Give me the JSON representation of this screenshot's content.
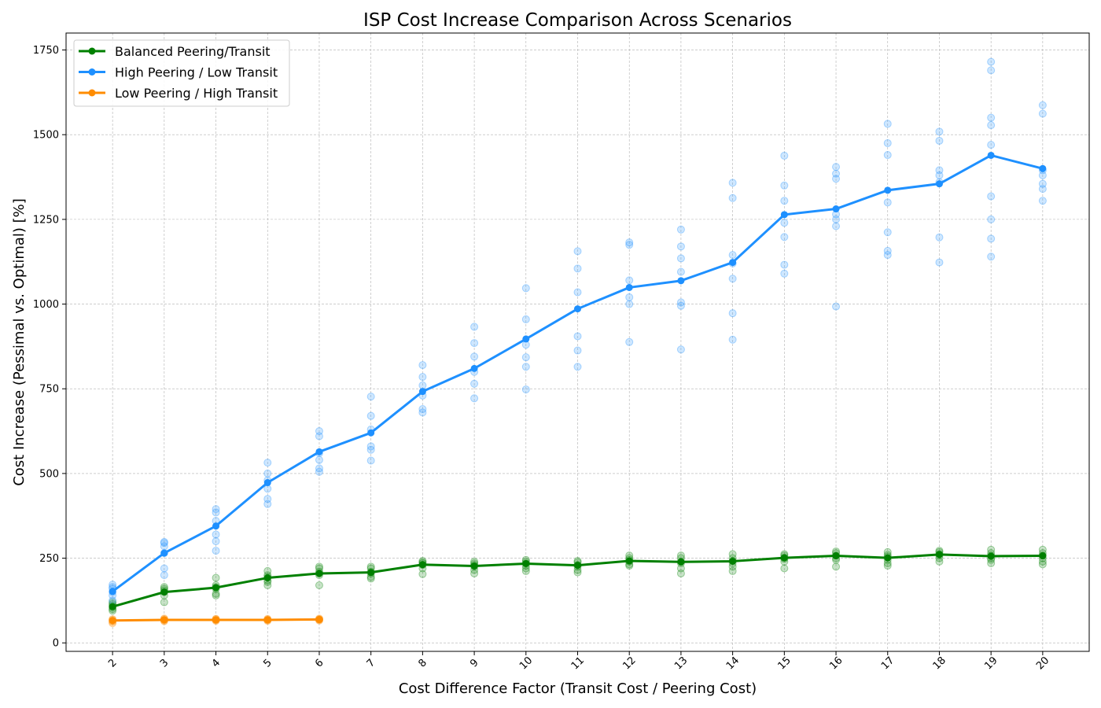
{
  "chart_data": {
    "type": "line",
    "title": "ISP Cost Increase Comparison Across Scenarios",
    "xlabel": "Cost Difference Factor (Transit Cost / Peering Cost)",
    "ylabel": "Cost Increase (Pessimal vs. Optimal) [%]",
    "x_ticks": [
      2,
      3,
      4,
      5,
      6,
      7,
      8,
      9,
      10,
      11,
      12,
      13,
      14,
      15,
      16,
      17,
      18,
      19,
      20
    ],
    "y_ticks": [
      0,
      250,
      500,
      750,
      1000,
      1250,
      1500,
      1750
    ],
    "xlim": [
      1.1,
      20.9
    ],
    "ylim": [
      -25,
      1800
    ],
    "grid": true,
    "legend_position": "top-left",
    "series": [
      {
        "name": "Balanced Peering/Transit",
        "color": "#008000",
        "x": [
          2,
          3,
          4,
          5,
          6,
          7,
          8,
          9,
          10,
          11,
          12,
          13,
          14,
          15,
          16,
          17,
          18,
          19,
          20
        ],
        "mean": [
          107,
          150,
          163,
          192,
          205,
          208,
          231,
          227,
          234,
          229,
          242,
          239,
          241,
          251,
          257,
          251,
          261,
          256,
          257
        ],
        "scatter": [
          [
            95,
            100,
            105,
            110,
            115,
            120
          ],
          [
            120,
            140,
            150,
            155,
            160,
            165
          ],
          [
            140,
            145,
            160,
            165,
            170,
            192
          ],
          [
            170,
            180,
            185,
            195,
            200,
            212
          ],
          [
            170,
            200,
            205,
            210,
            220,
            225
          ],
          [
            190,
            195,
            205,
            210,
            220,
            225
          ],
          [
            203,
            220,
            230,
            235,
            238,
            242
          ],
          [
            205,
            215,
            225,
            230,
            235,
            240
          ],
          [
            212,
            220,
            228,
            235,
            240,
            245
          ],
          [
            208,
            215,
            225,
            230,
            238,
            242
          ],
          [
            228,
            232,
            240,
            245,
            250,
            258
          ],
          [
            205,
            220,
            235,
            240,
            250,
            258
          ],
          [
            212,
            225,
            235,
            242,
            250,
            262
          ],
          [
            220,
            240,
            248,
            252,
            258,
            262
          ],
          [
            225,
            245,
            250,
            258,
            265,
            270
          ],
          [
            228,
            235,
            245,
            255,
            260,
            268
          ],
          [
            240,
            250,
            258,
            262,
            268,
            272
          ],
          [
            235,
            245,
            250,
            258,
            265,
            275
          ],
          [
            232,
            240,
            250,
            258,
            265,
            275
          ]
        ]
      },
      {
        "name": "High Peering / Low Transit",
        "color": "#1e90ff",
        "x": [
          2,
          3,
          4,
          5,
          6,
          7,
          8,
          9,
          10,
          11,
          12,
          13,
          14,
          15,
          16,
          17,
          18,
          19,
          20
        ],
        "mean": [
          152,
          265,
          345,
          473,
          564,
          620,
          742,
          810,
          897,
          986,
          1049,
          1069,
          1123,
          1264,
          1281,
          1336,
          1355,
          1439,
          1400
        ],
        "scatter": [
          [
            125,
            140,
            150,
            160,
            165,
            172
          ],
          [
            200,
            220,
            265,
            285,
            295,
            298
          ],
          [
            272,
            300,
            320,
            360,
            385,
            395
          ],
          [
            410,
            425,
            455,
            480,
            500,
            532
          ],
          [
            505,
            515,
            540,
            560,
            610,
            625
          ],
          [
            538,
            570,
            580,
            630,
            670,
            727
          ],
          [
            680,
            690,
            730,
            760,
            785,
            820
          ],
          [
            722,
            765,
            800,
            845,
            885,
            933
          ],
          [
            748,
            815,
            843,
            880,
            955,
            1047
          ],
          [
            815,
            863,
            905,
            1035,
            1105,
            1156
          ],
          [
            888,
            1000,
            1020,
            1070,
            1175,
            1182
          ],
          [
            866,
            995,
            1005,
            1095,
            1135,
            1170,
            1220
          ],
          [
            895,
            973,
            1075,
            1120,
            1145,
            1313,
            1358
          ],
          [
            1090,
            1116,
            1198,
            1240,
            1305,
            1350,
            1438
          ],
          [
            993,
            1230,
            1250,
            1265,
            1370,
            1385,
            1405
          ],
          [
            1145,
            1157,
            1212,
            1300,
            1440,
            1475,
            1532
          ],
          [
            1123,
            1197,
            1360,
            1380,
            1395,
            1482,
            1509
          ],
          [
            1140,
            1193,
            1250,
            1318,
            1470,
            1528,
            1550,
            1690,
            1715
          ],
          [
            1305,
            1340,
            1355,
            1380,
            1395,
            1562,
            1587
          ]
        ]
      },
      {
        "name": "Low Peering / High Transit",
        "color": "#ff8c00",
        "x": [
          2,
          3,
          4,
          5,
          6
        ],
        "mean": [
          66,
          68,
          68,
          68,
          69
        ],
        "scatter": [
          [
            58,
            62,
            65,
            68,
            70
          ],
          [
            64,
            66,
            68,
            70,
            72
          ],
          [
            65,
            67,
            68,
            70,
            71
          ],
          [
            65,
            67,
            68,
            69,
            71
          ],
          [
            66,
            68,
            69,
            70,
            72
          ]
        ]
      }
    ]
  }
}
